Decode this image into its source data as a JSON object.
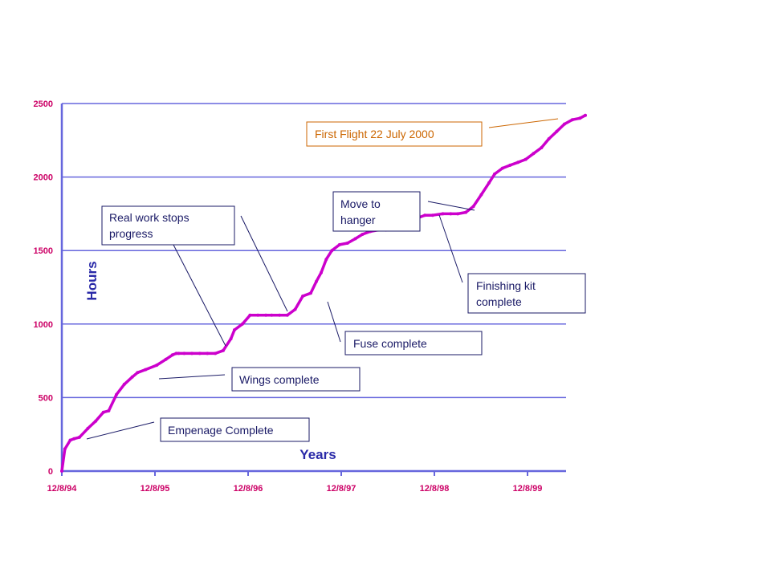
{
  "chart_data": {
    "type": "line",
    "title": "",
    "xlabel": "Years",
    "ylabel": "Hours",
    "ylim": [
      0,
      2500
    ],
    "y_ticks": [
      0,
      500,
      1000,
      1500,
      2000,
      2500
    ],
    "x_ticks": [
      "12/8/94",
      "12/8/95",
      "12/8/96",
      "12/8/97",
      "12/8/98",
      "12/8/99"
    ],
    "grid": "horizontal",
    "series": [
      {
        "name": "",
        "color": "#cc00cc",
        "x": [
          "1994-12-08",
          "1994-12-20",
          "1995-01-10",
          "1995-01-25",
          "1995-02-15",
          "1995-03-20",
          "1995-04-20",
          "1995-05-20",
          "1995-06-10",
          "1995-07-10",
          "1995-08-10",
          "1995-09-10",
          "1995-10-01",
          "1995-11-01",
          "1995-12-15",
          "1996-01-20",
          "1996-02-15",
          "1996-03-01",
          "1996-03-10",
          "1996-04-01",
          "1996-05-01",
          "1996-06-01",
          "1996-07-01",
          "1996-08-01",
          "1996-09-01",
          "1996-10-01",
          "1996-10-15",
          "1996-11-15",
          "1996-12-15",
          "1997-01-15",
          "1997-02-15",
          "1997-03-10",
          "1997-04-10",
          "1997-05-10",
          "1997-06-10",
          "1997-07-10",
          "1997-08-10",
          "1997-09-01",
          "1997-09-20",
          "1997-10-10",
          "1997-11-01",
          "1997-12-01",
          "1998-01-01",
          "1998-02-01",
          "1998-03-01",
          "1998-04-01",
          "1998-05-01",
          "1998-06-01",
          "1998-07-01",
          "1998-08-01",
          "1998-09-01",
          "1998-10-01",
          "1998-11-01",
          "1998-12-01",
          "1999-01-10",
          "1999-02-10",
          "1999-03-10",
          "1999-04-10",
          "1999-05-10",
          "1999-06-10",
          "1999-07-10",
          "1999-08-01",
          "1999-09-01",
          "1999-10-01",
          "1999-11-01",
          "1999-12-01",
          "2000-01-01",
          "2000-02-01",
          "2000-03-01",
          "2000-04-01",
          "2000-05-01",
          "2000-06-01",
          "2000-07-01",
          "2000-07-22"
        ],
        "y": [
          0,
          150,
          210,
          220,
          230,
          290,
          340,
          400,
          410,
          520,
          590,
          640,
          670,
          690,
          720,
          760,
          790,
          800,
          800,
          800,
          800,
          800,
          800,
          800,
          820,
          900,
          960,
          1000,
          1060,
          1060,
          1060,
          1060,
          1060,
          1060,
          1100,
          1190,
          1210,
          1290,
          1350,
          1440,
          1500,
          1540,
          1550,
          1580,
          1610,
          1630,
          1640,
          1640,
          1650,
          1700,
          1710,
          1720,
          1740,
          1740,
          1750,
          1750,
          1750,
          1760,
          1800,
          1880,
          1960,
          2020,
          2060,
          2080,
          2100,
          2120,
          2160,
          2200,
          2260,
          2310,
          2360,
          2390,
          2400,
          2420
        ]
      }
    ],
    "annotations": [
      {
        "text": "First Flight 22 July 2000"
      },
      {
        "text": "Move to hanger"
      },
      {
        "text": "Real work stops progress"
      },
      {
        "text": "Finishing kit complete"
      },
      {
        "text": "Fuse complete"
      },
      {
        "text": "Wings complete"
      },
      {
        "text": "Empenage Complete"
      }
    ]
  }
}
